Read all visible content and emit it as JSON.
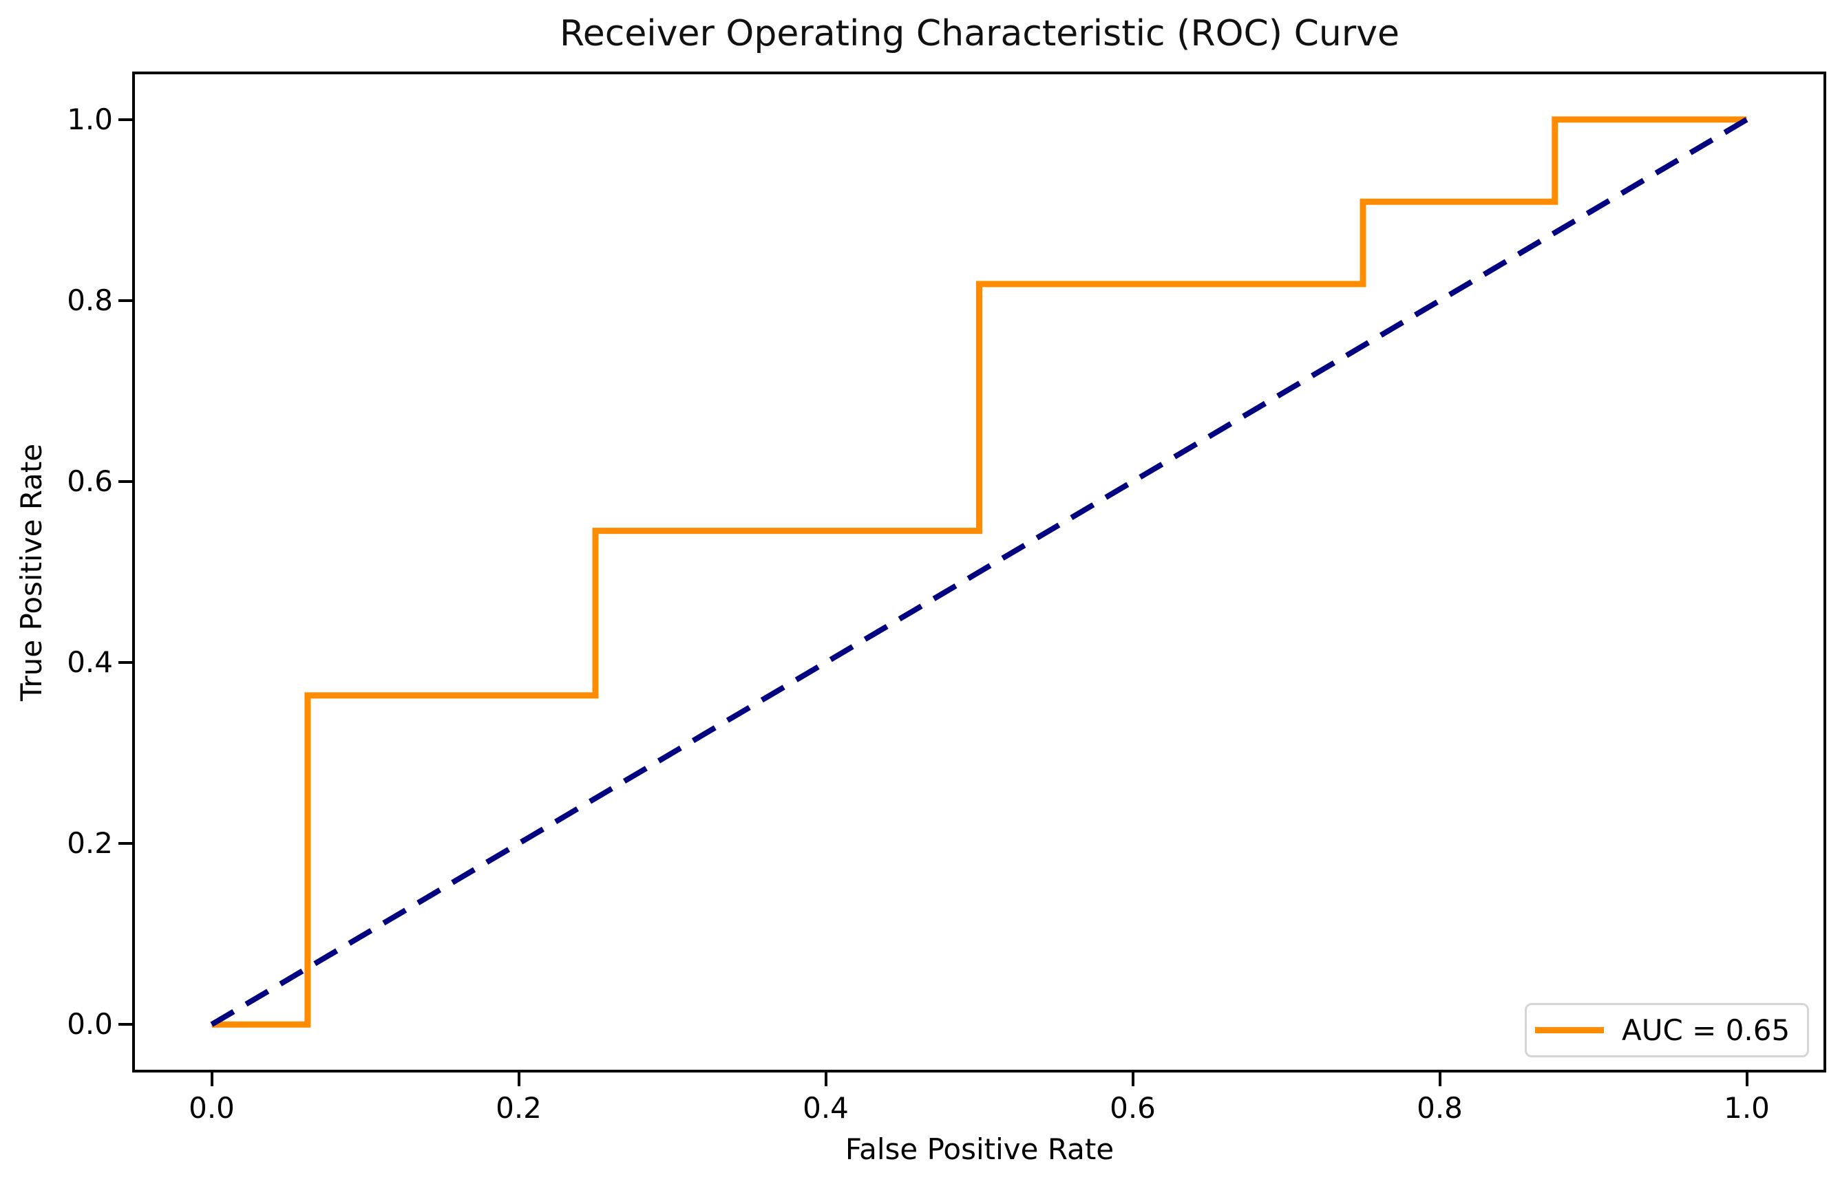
{
  "chart_data": {
    "type": "line",
    "title": "Receiver Operating Characteristic (ROC) Curve",
    "xlabel": "False Positive Rate",
    "ylabel": "True Positive Rate",
    "xlim": [
      -0.05,
      1.05
    ],
    "ylim": [
      -0.05,
      1.05
    ],
    "xtick_labels": [
      "0.0",
      "0.2",
      "0.4",
      "0.6",
      "0.8",
      "1.0"
    ],
    "ytick_labels": [
      "0.0",
      "0.2",
      "0.4",
      "0.6",
      "0.8",
      "1.0"
    ],
    "grid": false,
    "background_color": "#ffffff",
    "spine_color": "#000000",
    "legend": {
      "position": "lower-right",
      "entries": [
        {
          "label": "AUC = 0.65",
          "color": "#ff8c00",
          "style": "solid"
        }
      ]
    },
    "series": [
      {
        "name": "roc-curve",
        "color": "#ff8c00",
        "style": "solid",
        "x": [
          0.0,
          0.0625,
          0.0625,
          0.25,
          0.25,
          0.5,
          0.5,
          0.75,
          0.75,
          0.875,
          0.875,
          1.0
        ],
        "y": [
          0.0,
          0.0,
          0.3636,
          0.3636,
          0.5455,
          0.5455,
          0.8182,
          0.8182,
          0.9091,
          0.9091,
          1.0,
          1.0
        ]
      },
      {
        "name": "chance-diagonal",
        "color": "#000080",
        "style": "dashed",
        "x": [
          0.0,
          1.0
        ],
        "y": [
          0.0,
          1.0
        ]
      }
    ]
  }
}
